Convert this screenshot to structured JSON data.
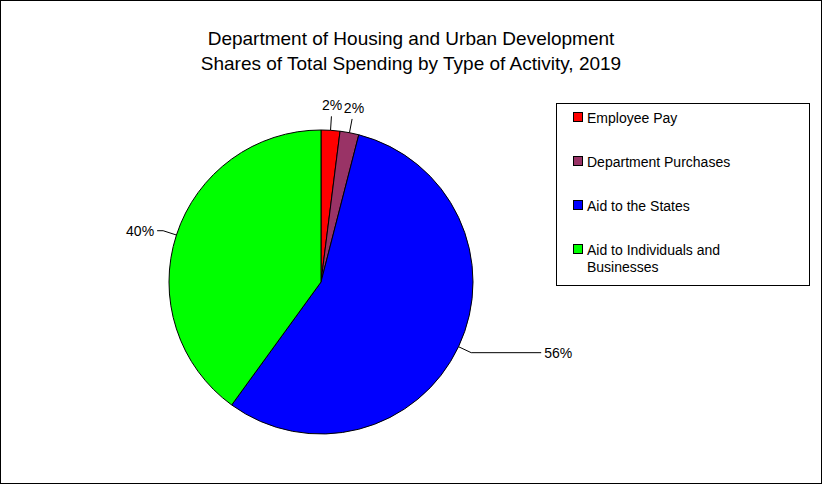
{
  "chart_data": {
    "type": "pie",
    "title": "Department of Housing and Urban Development",
    "subtitle": "Shares of Total Spending by Type of Activity, 2019",
    "categories": [
      "Employee Pay",
      "Department Purchases",
      "Aid to the States",
      "Aid to Individuals and Businesses"
    ],
    "values": [
      2,
      2,
      56,
      40
    ],
    "value_labels": [
      "2%",
      "2%",
      "56%",
      "40%"
    ],
    "colors": [
      "#ff0000",
      "#993366",
      "#0000ff",
      "#00ff00"
    ],
    "data_labels": true,
    "legend": "right"
  }
}
